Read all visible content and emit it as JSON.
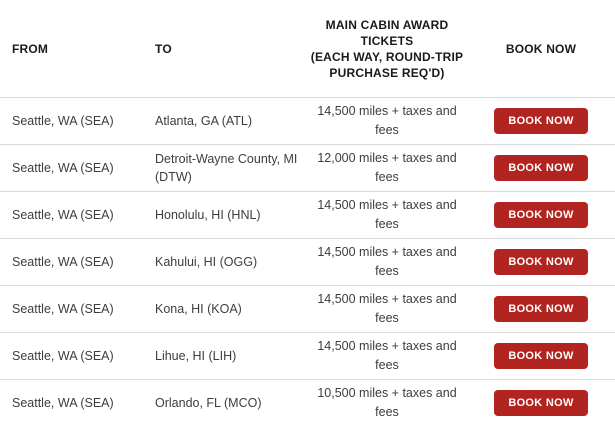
{
  "table": {
    "header": {
      "from": "FROM",
      "to": "TO",
      "award_lines": [
        "MAIN CABIN AWARD",
        "TICKETS",
        "(EACH WAY, ROUND-TRIP",
        "PURCHASE REQ'D)"
      ],
      "book_now": "BOOK NOW"
    },
    "button_label": "BOOK NOW",
    "colors": {
      "button_red": "#b2241f",
      "divider": "#d9d9d9",
      "header_text": "#1a1a1a",
      "body_text": "#3d3d3d"
    },
    "rows": [
      {
        "from": "Seattle, WA (SEA)",
        "to": "Atlanta, GA (ATL)",
        "award": "14,500 miles + taxes and fees"
      },
      {
        "from": "Seattle, WA (SEA)",
        "to": "Detroit-Wayne County, MI (DTW)",
        "award": "12,000 miles + taxes and fees"
      },
      {
        "from": "Seattle, WA (SEA)",
        "to": "Honolulu, HI (HNL)",
        "award": "14,500 miles + taxes and fees"
      },
      {
        "from": "Seattle, WA (SEA)",
        "to": "Kahului, HI (OGG)",
        "award": "14,500 miles + taxes and fees"
      },
      {
        "from": "Seattle, WA (SEA)",
        "to": "Kona, HI (KOA)",
        "award": "14,500 miles + taxes and fees"
      },
      {
        "from": "Seattle, WA (SEA)",
        "to": "Lihue, HI (LIH)",
        "award": "14,500 miles + taxes and fees"
      },
      {
        "from": "Seattle, WA (SEA)",
        "to": "Orlando, FL (MCO)",
        "award": "10,500 miles + taxes and fees"
      }
    ]
  }
}
